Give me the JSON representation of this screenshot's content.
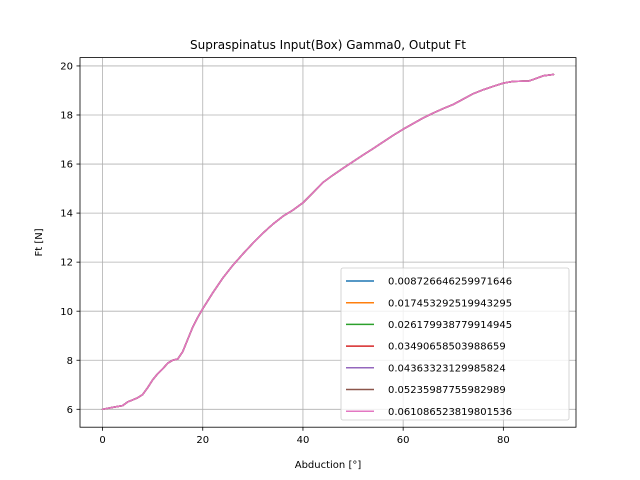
{
  "chart_data": {
    "type": "line",
    "title": "Supraspinatus Input(Box) Gamma0, Output Ft",
    "xlabel": "Abduction [°]",
    "ylabel": "Ft [N]",
    "xlim": [
      -4.5,
      94.5
    ],
    "ylim": [
      5.27,
      20.34
    ],
    "xticks": [
      0,
      20,
      40,
      60,
      80
    ],
    "yticks": [
      6,
      8,
      10,
      12,
      14,
      16,
      18,
      20
    ],
    "grid": true,
    "legend_position": "lower-right",
    "x": [
      0,
      2,
      4,
      5,
      6,
      7,
      8,
      9,
      10,
      11,
      12,
      13,
      14,
      15,
      16,
      17,
      18,
      19,
      20,
      22,
      24,
      26,
      28,
      30,
      32,
      34,
      36,
      38,
      40,
      42,
      44,
      46,
      48,
      50,
      52,
      54,
      56,
      58,
      60,
      62,
      64,
      66,
      68,
      70,
      72,
      74,
      76,
      78,
      80,
      82,
      84,
      85,
      86,
      88,
      90
    ],
    "series": [
      {
        "name": "0.008726646259971646",
        "color": "#1f77b4",
        "values": [
          6.0,
          6.08,
          6.15,
          6.3,
          6.38,
          6.47,
          6.6,
          6.88,
          7.2,
          7.45,
          7.65,
          7.88,
          8.0,
          8.05,
          8.35,
          8.85,
          9.35,
          9.75,
          10.1,
          10.75,
          11.35,
          11.87,
          12.33,
          12.77,
          13.18,
          13.55,
          13.87,
          14.12,
          14.42,
          14.83,
          15.25,
          15.55,
          15.83,
          16.1,
          16.37,
          16.63,
          16.9,
          17.17,
          17.42,
          17.65,
          17.88,
          18.08,
          18.26,
          18.43,
          18.65,
          18.87,
          19.03,
          19.17,
          19.3,
          19.37,
          19.38,
          19.38,
          19.45,
          19.6,
          19.65
        ]
      },
      {
        "name": "0.017453292519943295",
        "color": "#ff7f0e",
        "values": [
          6.0,
          6.08,
          6.15,
          6.3,
          6.38,
          6.47,
          6.6,
          6.88,
          7.2,
          7.45,
          7.65,
          7.88,
          8.0,
          8.05,
          8.35,
          8.85,
          9.35,
          9.75,
          10.1,
          10.75,
          11.35,
          11.87,
          12.33,
          12.77,
          13.18,
          13.55,
          13.87,
          14.12,
          14.42,
          14.83,
          15.25,
          15.55,
          15.83,
          16.1,
          16.37,
          16.63,
          16.9,
          17.17,
          17.42,
          17.65,
          17.88,
          18.08,
          18.26,
          18.43,
          18.65,
          18.87,
          19.03,
          19.17,
          19.3,
          19.37,
          19.38,
          19.38,
          19.45,
          19.6,
          19.65
        ]
      },
      {
        "name": "0.026179938779914945",
        "color": "#2ca02c",
        "values": [
          6.0,
          6.08,
          6.15,
          6.3,
          6.38,
          6.47,
          6.6,
          6.88,
          7.2,
          7.45,
          7.65,
          7.88,
          8.0,
          8.05,
          8.35,
          8.85,
          9.35,
          9.75,
          10.1,
          10.75,
          11.35,
          11.87,
          12.33,
          12.77,
          13.18,
          13.55,
          13.87,
          14.12,
          14.42,
          14.83,
          15.25,
          15.55,
          15.83,
          16.1,
          16.37,
          16.63,
          16.9,
          17.17,
          17.42,
          17.65,
          17.88,
          18.08,
          18.26,
          18.43,
          18.65,
          18.87,
          19.03,
          19.17,
          19.3,
          19.37,
          19.38,
          19.38,
          19.45,
          19.6,
          19.65
        ]
      },
      {
        "name": "0.03490658503988659",
        "color": "#d62728",
        "values": [
          6.0,
          6.08,
          6.15,
          6.3,
          6.38,
          6.47,
          6.6,
          6.88,
          7.2,
          7.45,
          7.65,
          7.88,
          8.0,
          8.05,
          8.35,
          8.85,
          9.35,
          9.75,
          10.1,
          10.75,
          11.35,
          11.87,
          12.33,
          12.77,
          13.18,
          13.55,
          13.87,
          14.12,
          14.42,
          14.83,
          15.25,
          15.55,
          15.83,
          16.1,
          16.37,
          16.63,
          16.9,
          17.17,
          17.42,
          17.65,
          17.88,
          18.08,
          18.26,
          18.43,
          18.65,
          18.87,
          19.03,
          19.17,
          19.3,
          19.37,
          19.38,
          19.38,
          19.45,
          19.6,
          19.65
        ]
      },
      {
        "name": "0.04363323129985824",
        "color": "#9467bd",
        "values": [
          6.0,
          6.08,
          6.15,
          6.3,
          6.38,
          6.47,
          6.6,
          6.88,
          7.2,
          7.45,
          7.65,
          7.88,
          8.0,
          8.05,
          8.35,
          8.85,
          9.35,
          9.75,
          10.1,
          10.75,
          11.35,
          11.87,
          12.33,
          12.77,
          13.18,
          13.55,
          13.87,
          14.12,
          14.42,
          14.83,
          15.25,
          15.55,
          15.83,
          16.1,
          16.37,
          16.63,
          16.9,
          17.17,
          17.42,
          17.65,
          17.88,
          18.08,
          18.26,
          18.43,
          18.65,
          18.87,
          19.03,
          19.17,
          19.3,
          19.37,
          19.38,
          19.38,
          19.45,
          19.6,
          19.65
        ]
      },
      {
        "name": "0.05235987755982989",
        "color": "#8c564b",
        "values": [
          6.0,
          6.08,
          6.15,
          6.3,
          6.38,
          6.47,
          6.6,
          6.88,
          7.2,
          7.45,
          7.65,
          7.88,
          8.0,
          8.05,
          8.35,
          8.85,
          9.35,
          9.75,
          10.1,
          10.75,
          11.35,
          11.87,
          12.33,
          12.77,
          13.18,
          13.55,
          13.87,
          14.12,
          14.42,
          14.83,
          15.25,
          15.55,
          15.83,
          16.1,
          16.37,
          16.63,
          16.9,
          17.17,
          17.42,
          17.65,
          17.88,
          18.08,
          18.26,
          18.43,
          18.65,
          18.87,
          19.03,
          19.17,
          19.3,
          19.37,
          19.38,
          19.38,
          19.45,
          19.6,
          19.65
        ]
      },
      {
        "name": "0.061086523819801536",
        "color": "#e377c2",
        "values": [
          6.0,
          6.08,
          6.15,
          6.3,
          6.38,
          6.47,
          6.6,
          6.88,
          7.2,
          7.45,
          7.65,
          7.88,
          8.0,
          8.05,
          8.35,
          8.85,
          9.35,
          9.75,
          10.1,
          10.75,
          11.35,
          11.87,
          12.33,
          12.77,
          13.18,
          13.55,
          13.87,
          14.12,
          14.42,
          14.83,
          15.25,
          15.55,
          15.83,
          16.1,
          16.37,
          16.63,
          16.9,
          17.17,
          17.42,
          17.65,
          17.88,
          18.08,
          18.26,
          18.43,
          18.65,
          18.87,
          19.03,
          19.17,
          19.3,
          19.37,
          19.38,
          19.38,
          19.45,
          19.6,
          19.65
        ]
      }
    ]
  }
}
